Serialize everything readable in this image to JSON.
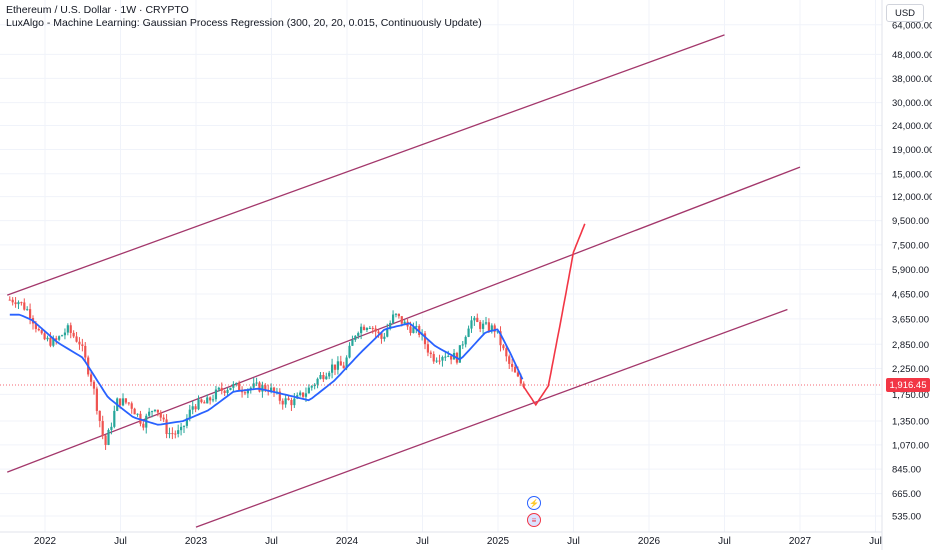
{
  "header": {
    "symbol_line": "Ethereum / U.S. Dollar · 1W · CRYPTO",
    "indicator_line": "LuxAlgo - Machine Learning: Gaussian Process Regression (300, 20, 20, 0.015, Continuously Update)"
  },
  "price_axis": {
    "unit": "USD",
    "current_price": "1,916.45",
    "current_price_color": "#f23645"
  },
  "icons": {
    "flash_event": "lightning-event-icon",
    "flag_event": "us-flag-event-icon"
  },
  "colors": {
    "up": "#26a69a",
    "down": "#ef5350",
    "regression": "#2962ff",
    "forecast": "#f23645",
    "channel": "#a3376b",
    "grid": "#f0f3fa"
  },
  "chart_data": {
    "type": "candlestick",
    "y_scale": "log",
    "ylim": [
      480,
      80000
    ],
    "y_ticks": [
      "64,000.00",
      "48,000.00",
      "38,000.00",
      "30,000.00",
      "24,000.00",
      "19,000.00",
      "15,000.00",
      "12,000.00",
      "9,500.00",
      "7,500.00",
      "5,900.00",
      "4,650.00",
      "3,650.00",
      "2,850.00",
      "2,250.00",
      "1,750.00",
      "1,350.00",
      "1,070.00",
      "845.00",
      "665.00",
      "535.00"
    ],
    "x_ticks": [
      "2022",
      "Jul",
      "2023",
      "Jul",
      "2024",
      "Jul",
      "2025",
      "Jul",
      "2026",
      "Jul",
      "2027",
      "Jul"
    ],
    "price_anchors": [
      [
        "2021-11",
        4400
      ],
      [
        "2021-12",
        3900
      ],
      [
        "2022-01",
        3000
      ],
      [
        "2022-02",
        2900
      ],
      [
        "2022-03",
        3300
      ],
      [
        "2022-04",
        2900
      ],
      [
        "2022-05",
        1950
      ],
      [
        "2022-06",
        1050
      ],
      [
        "2022-07",
        1650
      ],
      [
        "2022-08",
        1600
      ],
      [
        "2022-09",
        1320
      ],
      [
        "2022-10",
        1580
      ],
      [
        "2022-11",
        1200
      ],
      [
        "2022-12",
        1200
      ],
      [
        "2023-01",
        1580
      ],
      [
        "2023-02",
        1600
      ],
      [
        "2023-03",
        1800
      ],
      [
        "2023-04",
        1900
      ],
      [
        "2023-05",
        1850
      ],
      [
        "2023-06",
        1880
      ],
      [
        "2023-07",
        1860
      ],
      [
        "2023-08",
        1650
      ],
      [
        "2023-09",
        1630
      ],
      [
        "2023-10",
        1800
      ],
      [
        "2023-11",
        2050
      ],
      [
        "2023-12",
        2300
      ],
      [
        "2024-01",
        2300
      ],
      [
        "2024-02",
        3300
      ],
      [
        "2024-03",
        3500
      ],
      [
        "2024-04",
        3000
      ],
      [
        "2024-05",
        3800
      ],
      [
        "2024-06",
        3400
      ],
      [
        "2024-07",
        3200
      ],
      [
        "2024-08",
        2500
      ],
      [
        "2024-09",
        2600
      ],
      [
        "2024-10",
        2500
      ],
      [
        "2024-11",
        3600
      ],
      [
        "2024-12",
        3400
      ],
      [
        "2025-01",
        3300
      ],
      [
        "2025-02",
        2400
      ],
      [
        "2025-03",
        1950
      ]
    ],
    "regression_anchors": [
      [
        "2021-11",
        3800
      ],
      [
        "2021-12",
        3600
      ],
      [
        "2022-02",
        2900
      ],
      [
        "2022-04",
        2500
      ],
      [
        "2022-06",
        1700
      ],
      [
        "2022-08",
        1400
      ],
      [
        "2022-10",
        1300
      ],
      [
        "2022-12",
        1350
      ],
      [
        "2023-02",
        1500
      ],
      [
        "2023-04",
        1800
      ],
      [
        "2023-06",
        1850
      ],
      [
        "2023-08",
        1750
      ],
      [
        "2023-10",
        1650
      ],
      [
        "2023-12",
        2000
      ],
      [
        "2024-02",
        2600
      ],
      [
        "2024-04",
        3300
      ],
      [
        "2024-06",
        3500
      ],
      [
        "2024-08",
        2800
      ],
      [
        "2024-10",
        2450
      ],
      [
        "2024-12",
        3200
      ],
      [
        "2025-01",
        3300
      ],
      [
        "2025-02",
        2600
      ],
      [
        "2025-03",
        2000
      ]
    ],
    "forecast_anchors": [
      [
        "2025-04",
        1580
      ],
      [
        "2025-05",
        1900
      ],
      [
        "2025-06",
        3600
      ],
      [
        "2025-07",
        7000
      ],
      [
        "2025-08",
        9500
      ]
    ],
    "channel_lines": [
      {
        "name": "upper",
        "start": [
          "2021-10",
          4600
        ],
        "end": [
          "2026-07",
          58000
        ]
      },
      {
        "name": "middle",
        "start": [
          "2021-10",
          820
        ],
        "end": [
          "2027-01",
          16000
        ]
      },
      {
        "name": "lower",
        "start": [
          "2023-01",
          480
        ],
        "end": [
          "2026-12",
          4000
        ]
      }
    ],
    "current_price": 1916.45
  }
}
